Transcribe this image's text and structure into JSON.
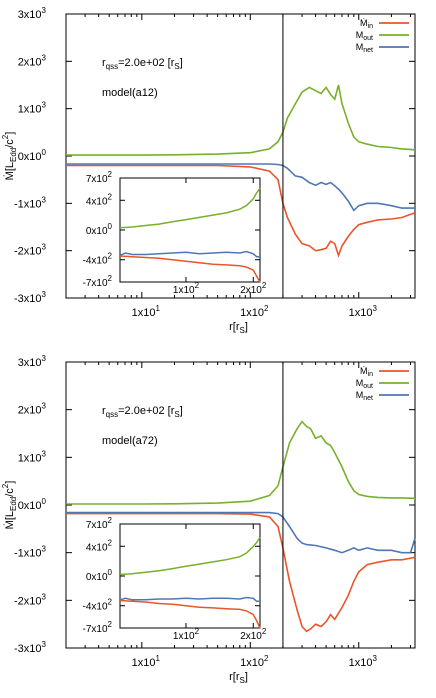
{
  "chart_data": [
    {
      "type": "line",
      "panel": "top",
      "xlabel": "r[r_S]",
      "ylabel": "Ṁ[L_Edd/c^2]",
      "xscale": "log",
      "xlim": [
        2,
        3300
      ],
      "ylim": [
        -3000,
        3000
      ],
      "yticks": [
        {
          "v": 3000,
          "m": "3x10",
          "e": "3"
        },
        {
          "v": 2000,
          "m": "2x10",
          "e": "3"
        },
        {
          "v": 1000,
          "m": "1x10",
          "e": "3"
        },
        {
          "v": 0,
          "m": "0x10",
          "e": "0"
        },
        {
          "v": -1000,
          "m": "-1x10",
          "e": "3"
        },
        {
          "v": -2000,
          "m": "-2x10",
          "e": "3"
        },
        {
          "v": -3000,
          "m": "-3x10",
          "e": "3"
        }
      ],
      "xticks": [
        {
          "v": 10,
          "m": "1x10",
          "e": "1"
        },
        {
          "v": 100,
          "m": "1x10",
          "e": "2"
        },
        {
          "v": 1000,
          "m": "1x10",
          "e": "3"
        }
      ],
      "annotation_rqss": {
        "pre": "r",
        "sub": "qss",
        "mid": "=2.0e+02 [r",
        "sub2": "S",
        "post": "]"
      },
      "annotation_model": "model(a12)",
      "vline": 200,
      "legend": [
        {
          "main": "Ṁ",
          "sub": "in",
          "color": "#e8562a"
        },
        {
          "main": "M",
          "sub": "out",
          "color": "#78b02b"
        },
        {
          "main": "M",
          "sub": "net",
          "color": "#4f76b5"
        }
      ],
      "series": [
        {
          "key": "in",
          "color": "#e8562a",
          "x": [
            2,
            5,
            10,
            20,
            50,
            100,
            150,
            180,
            200,
            220,
            260,
            300,
            350,
            400,
            450,
            500,
            550,
            600,
            650,
            700,
            800,
            900,
            1000,
            1200,
            1500,
            2000,
            2500,
            3300
          ],
          "y": [
            -200,
            -200,
            -200,
            -200,
            -200,
            -230,
            -320,
            -500,
            -1000,
            -1300,
            -1650,
            -1850,
            -1900,
            -2000,
            -1980,
            -1950,
            -1800,
            -1850,
            -2100,
            -1900,
            -1700,
            -1550,
            -1450,
            -1400,
            -1350,
            -1330,
            -1300,
            -1200
          ]
        },
        {
          "key": "out",
          "color": "#78b02b",
          "x": [
            2,
            5,
            10,
            20,
            50,
            100,
            150,
            180,
            200,
            220,
            260,
            300,
            350,
            400,
            450,
            500,
            550,
            600,
            650,
            700,
            750,
            800,
            900,
            1000,
            1200,
            1500,
            2000,
            2500,
            3300
          ],
          "y": [
            20,
            20,
            20,
            25,
            40,
            70,
            150,
            300,
            500,
            800,
            1100,
            1350,
            1450,
            1380,
            1320,
            1450,
            1300,
            1200,
            1500,
            1100,
            900,
            700,
            400,
            300,
            250,
            200,
            180,
            150,
            130
          ]
        },
        {
          "key": "net",
          "color": "#4f76b5",
          "x": [
            2,
            5,
            10,
            20,
            50,
            100,
            150,
            180,
            200,
            220,
            260,
            300,
            350,
            400,
            450,
            500,
            550,
            600,
            650,
            700,
            800,
            900,
            1000,
            1200,
            1500,
            2000,
            2500,
            3300
          ],
          "y": [
            -170,
            -170,
            -170,
            -170,
            -170,
            -170,
            -170,
            -180,
            -200,
            -260,
            -420,
            -450,
            -560,
            -620,
            -560,
            -600,
            -560,
            -630,
            -700,
            -780,
            -950,
            -1150,
            -1050,
            -1000,
            -1000,
            -1050,
            -1100,
            -1100
          ]
        }
      ],
      "inset": {
        "xscale": "linear",
        "xlim": [
          2,
          210
        ],
        "ylim": [
          -700,
          700
        ],
        "yticks": [
          {
            "v": 700,
            "m": "7x10",
            "e": "2"
          },
          {
            "v": 400,
            "m": "4x10",
            "e": "2"
          },
          {
            "v": 0,
            "m": "0x10",
            "e": "0"
          },
          {
            "v": -400,
            "m": "-4x10",
            "e": "2"
          },
          {
            "v": -700,
            "m": "-7x10",
            "e": "2"
          }
        ],
        "xticks": [
          {
            "v": 100,
            "m": "1x10",
            "e": "2"
          },
          {
            "v": 200,
            "m": "2x10",
            "e": "2"
          }
        ],
        "series": [
          {
            "key": "in",
            "color": "#e8562a",
            "x": [
              2,
              20,
              40,
              60,
              80,
              100,
              120,
              140,
              160,
              180,
              190,
              200,
              205,
              210
            ],
            "y": [
              -350,
              -360,
              -370,
              -380,
              -400,
              -420,
              -440,
              -460,
              -470,
              -480,
              -500,
              -540,
              -620,
              -700
            ]
          },
          {
            "key": "out",
            "color": "#78b02b",
            "x": [
              2,
              20,
              40,
              60,
              80,
              100,
              120,
              140,
              160,
              180,
              190,
              200,
              205,
              210
            ],
            "y": [
              30,
              40,
              60,
              80,
              110,
              140,
              170,
              200,
              230,
              280,
              330,
              420,
              500,
              560
            ]
          },
          {
            "key": "net",
            "color": "#4f76b5",
            "x": [
              2,
              10,
              20,
              40,
              60,
              80,
              100,
              120,
              140,
              160,
              180,
              190,
              200,
              205,
              210
            ],
            "y": [
              -340,
              -310,
              -330,
              -330,
              -320,
              -310,
              -300,
              -320,
              -310,
              -300,
              -310,
              -290,
              -320,
              -360,
              -360
            ]
          }
        ]
      }
    },
    {
      "type": "line",
      "panel": "bottom",
      "xlabel": "r[r_S]",
      "ylabel": "Ṁ[L_Edd/c^2]",
      "xscale": "log",
      "xlim": [
        2,
        3300
      ],
      "ylim": [
        -3000,
        3000
      ],
      "yticks": [
        {
          "v": 3000,
          "m": "3x10",
          "e": "3"
        },
        {
          "v": 2000,
          "m": "2x10",
          "e": "3"
        },
        {
          "v": 1000,
          "m": "1x10",
          "e": "3"
        },
        {
          "v": 0,
          "m": "0x10",
          "e": "0"
        },
        {
          "v": -1000,
          "m": "-1x10",
          "e": "3"
        },
        {
          "v": -2000,
          "m": "-2x10",
          "e": "3"
        },
        {
          "v": -3000,
          "m": "-3x10",
          "e": "3"
        }
      ],
      "xticks": [
        {
          "v": 10,
          "m": "1x10",
          "e": "1"
        },
        {
          "v": 100,
          "m": "1x10",
          "e": "2"
        },
        {
          "v": 1000,
          "m": "1x10",
          "e": "3"
        }
      ],
      "annotation_rqss": {
        "pre": "r",
        "sub": "qss",
        "mid": "=2.0e+02 [r",
        "sub2": "S",
        "post": "]"
      },
      "annotation_model": "model(a72)",
      "vline": 200,
      "legend": [
        {
          "main": "Ṁ",
          "sub": "in",
          "color": "#e8562a"
        },
        {
          "main": "M",
          "sub": "out",
          "color": "#78b02b"
        },
        {
          "main": "M",
          "sub": "net",
          "color": "#4f76b5"
        }
      ],
      "series": [
        {
          "key": "in",
          "color": "#e8562a",
          "x": [
            2,
            5,
            10,
            20,
            50,
            100,
            150,
            180,
            200,
            230,
            270,
            300,
            330,
            360,
            400,
            450,
            500,
            550,
            600,
            700,
            800,
            900,
            1000,
            1200,
            1500,
            2000,
            2500,
            3300
          ],
          "y": [
            -180,
            -180,
            -180,
            -180,
            -180,
            -190,
            -250,
            -450,
            -900,
            -1600,
            -2200,
            -2550,
            -2650,
            -2600,
            -2500,
            -2550,
            -2450,
            -2300,
            -2400,
            -2150,
            -1900,
            -1600,
            -1400,
            -1250,
            -1200,
            -1150,
            -1150,
            -1100
          ]
        },
        {
          "key": "out",
          "color": "#78b02b",
          "x": [
            2,
            5,
            10,
            20,
            50,
            100,
            150,
            180,
            200,
            230,
            270,
            300,
            330,
            360,
            400,
            450,
            500,
            550,
            600,
            700,
            800,
            900,
            1000,
            1200,
            1500,
            2000,
            2500,
            3300
          ],
          "y": [
            20,
            20,
            20,
            25,
            40,
            80,
            200,
            400,
            800,
            1300,
            1600,
            1750,
            1650,
            1600,
            1400,
            1450,
            1300,
            1250,
            1100,
            800,
            500,
            300,
            220,
            180,
            160,
            150,
            150,
            140
          ]
        },
        {
          "key": "net",
          "color": "#4f76b5",
          "x": [
            2,
            5,
            10,
            20,
            50,
            100,
            150,
            180,
            200,
            230,
            270,
            300,
            330,
            400,
            500,
            600,
            700,
            800,
            900,
            1000,
            1200,
            1500,
            2000,
            2500,
            3000,
            3300
          ],
          "y": [
            -160,
            -160,
            -160,
            -160,
            -160,
            -160,
            -160,
            -180,
            -250,
            -450,
            -700,
            -800,
            -830,
            -850,
            -900,
            -950,
            -1000,
            -950,
            -900,
            -950,
            -900,
            -950,
            -950,
            -1000,
            -1000,
            -700
          ]
        }
      ],
      "inset": {
        "xscale": "linear",
        "xlim": [
          2,
          210
        ],
        "ylim": [
          -700,
          700
        ],
        "yticks": [
          {
            "v": 700,
            "m": "7x10",
            "e": "2"
          },
          {
            "v": 400,
            "m": "4x10",
            "e": "2"
          },
          {
            "v": 0,
            "m": "0x10",
            "e": "0"
          },
          {
            "v": -400,
            "m": "-4x10",
            "e": "2"
          },
          {
            "v": -700,
            "m": "-7x10",
            "e": "2"
          }
        ],
        "xticks": [
          {
            "v": 100,
            "m": "1x10",
            "e": "2"
          },
          {
            "v": 200,
            "m": "2x10",
            "e": "2"
          }
        ],
        "series": [
          {
            "key": "in",
            "color": "#e8562a",
            "x": [
              2,
              20,
              40,
              60,
              80,
              100,
              120,
              140,
              160,
              180,
              190,
              200,
              205,
              210
            ],
            "y": [
              -330,
              -340,
              -350,
              -370,
              -380,
              -400,
              -420,
              -430,
              -440,
              -450,
              -470,
              -520,
              -600,
              -700
            ]
          },
          {
            "key": "out",
            "color": "#78b02b",
            "x": [
              2,
              20,
              40,
              60,
              80,
              100,
              120,
              140,
              160,
              180,
              190,
              200,
              205,
              210
            ],
            "y": [
              20,
              30,
              50,
              70,
              100,
              130,
              160,
              190,
              220,
              260,
              310,
              400,
              450,
              520
            ]
          },
          {
            "key": "net",
            "color": "#4f76b5",
            "x": [
              2,
              10,
              20,
              40,
              60,
              80,
              100,
              120,
              140,
              160,
              180,
              190,
              200,
              205,
              210
            ],
            "y": [
              -320,
              -300,
              -320,
              -320,
              -310,
              -310,
              -300,
              -310,
              -300,
              -300,
              -310,
              -290,
              -300,
              -340,
              -340
            ]
          }
        ]
      }
    }
  ]
}
